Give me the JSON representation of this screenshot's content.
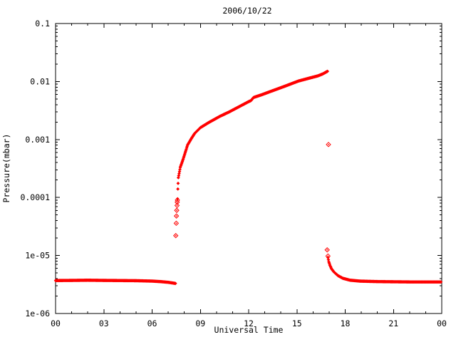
{
  "page": {
    "background": "#ffffff"
  },
  "chart_data": {
    "type": "scatter",
    "title": "2006/10/22",
    "xlabel": "Universal Time",
    "ylabel": "Pressure(mbar)",
    "x_unit": "hours",
    "xlim": [
      0,
      24
    ],
    "x_major_ticks": [
      {
        "hour": 0,
        "label": "00"
      },
      {
        "hour": 3,
        "label": "03"
      },
      {
        "hour": 6,
        "label": "06"
      },
      {
        "hour": 9,
        "label": "09"
      },
      {
        "hour": 12,
        "label": "12"
      },
      {
        "hour": 15,
        "label": "15"
      },
      {
        "hour": 18,
        "label": "18"
      },
      {
        "hour": 21,
        "label": "21"
      },
      {
        "hour": 24,
        "label": "00"
      }
    ],
    "x_minor_step_hours": 1,
    "y_scale": "log",
    "ylim": [
      1e-06,
      0.1
    ],
    "y_major_ticks": [
      {
        "value": 0.1,
        "label": "0.1"
      },
      {
        "value": 0.01,
        "label": "0.01"
      },
      {
        "value": 0.001,
        "label": "0.001"
      },
      {
        "value": 0.0001,
        "label": "0.0001"
      },
      {
        "value": 1e-05,
        "label": "1e-05"
      },
      {
        "value": 1e-06,
        "label": "1e-06"
      }
    ],
    "grid": false,
    "legend": null,
    "marker": "diamond",
    "point_color": "#ff0000",
    "axis_color": "#000000",
    "series": [
      {
        "name": "baseline-pre-event",
        "style": "dense",
        "sample_step_hours": 0.03,
        "points": [
          [
            0,
            3.7e-06
          ],
          [
            1,
            3.72e-06
          ],
          [
            2,
            3.75e-06
          ],
          [
            3,
            3.72e-06
          ],
          [
            4,
            3.7e-06
          ],
          [
            5,
            3.68e-06
          ],
          [
            6,
            3.62e-06
          ],
          [
            6.5,
            3.55e-06
          ],
          [
            7.0,
            3.45e-06
          ],
          [
            7.3,
            3.35e-06
          ],
          [
            7.45,
            3.3e-06
          ]
        ]
      },
      {
        "name": "onset-spike",
        "style": "sparse",
        "points": [
          [
            7.47,
            2.2e-05
          ],
          [
            7.5,
            3.6e-05
          ],
          [
            7.51,
            4.8e-05
          ],
          [
            7.53,
            6e-05
          ],
          [
            7.55,
            7.3e-05
          ],
          [
            7.56,
            8.3e-05
          ],
          [
            7.57,
            9e-05
          ]
        ]
      },
      {
        "name": "pressure-rise",
        "style": "dense",
        "sample_step_hours": 0.025,
        "points": [
          [
            7.58,
            9.5e-05
          ],
          [
            7.6,
            0.00014
          ],
          [
            7.63,
            0.00022
          ],
          [
            7.75,
            0.00033
          ],
          [
            7.93,
            0.00046
          ],
          [
            8.1,
            0.00065
          ],
          [
            8.2,
            0.0008
          ],
          [
            8.45,
            0.00105
          ],
          [
            8.65,
            0.00128
          ],
          [
            9.0,
            0.0016
          ],
          [
            9.5,
            0.00195
          ],
          [
            10.2,
            0.0025
          ],
          [
            10.8,
            0.003
          ],
          [
            11.5,
            0.0038
          ],
          [
            12.0,
            0.0045
          ],
          [
            12.15,
            0.0047
          ],
          [
            12.3,
            0.0053
          ],
          [
            12.8,
            0.0059
          ],
          [
            13.4,
            0.0068
          ],
          [
            14.2,
            0.0082
          ],
          [
            15.1,
            0.0102
          ],
          [
            15.8,
            0.0115
          ],
          [
            16.3,
            0.0125
          ],
          [
            16.6,
            0.0135
          ],
          [
            16.9,
            0.015
          ]
        ]
      },
      {
        "name": "outlier-point",
        "style": "sparse",
        "points": [
          [
            16.96,
            0.00082
          ]
        ]
      },
      {
        "name": "decay-top",
        "style": "sparse",
        "points": [
          [
            16.88,
            1.25e-05
          ],
          [
            16.93,
            9.8e-06
          ]
        ]
      },
      {
        "name": "post-event-decay",
        "style": "dense",
        "sample_step_hours": 0.03,
        "points": [
          [
            16.93,
            9.2e-06
          ],
          [
            16.98,
            7.8e-06
          ],
          [
            17.05,
            6.8e-06
          ],
          [
            17.15,
            5.9e-06
          ],
          [
            17.3,
            5.2e-06
          ],
          [
            17.55,
            4.5e-06
          ],
          [
            17.85,
            4.05e-06
          ],
          [
            18.3,
            3.75e-06
          ],
          [
            18.9,
            3.62e-06
          ],
          [
            20.0,
            3.55e-06
          ],
          [
            22.0,
            3.5e-06
          ],
          [
            23.95,
            3.5e-06
          ]
        ]
      }
    ]
  }
}
